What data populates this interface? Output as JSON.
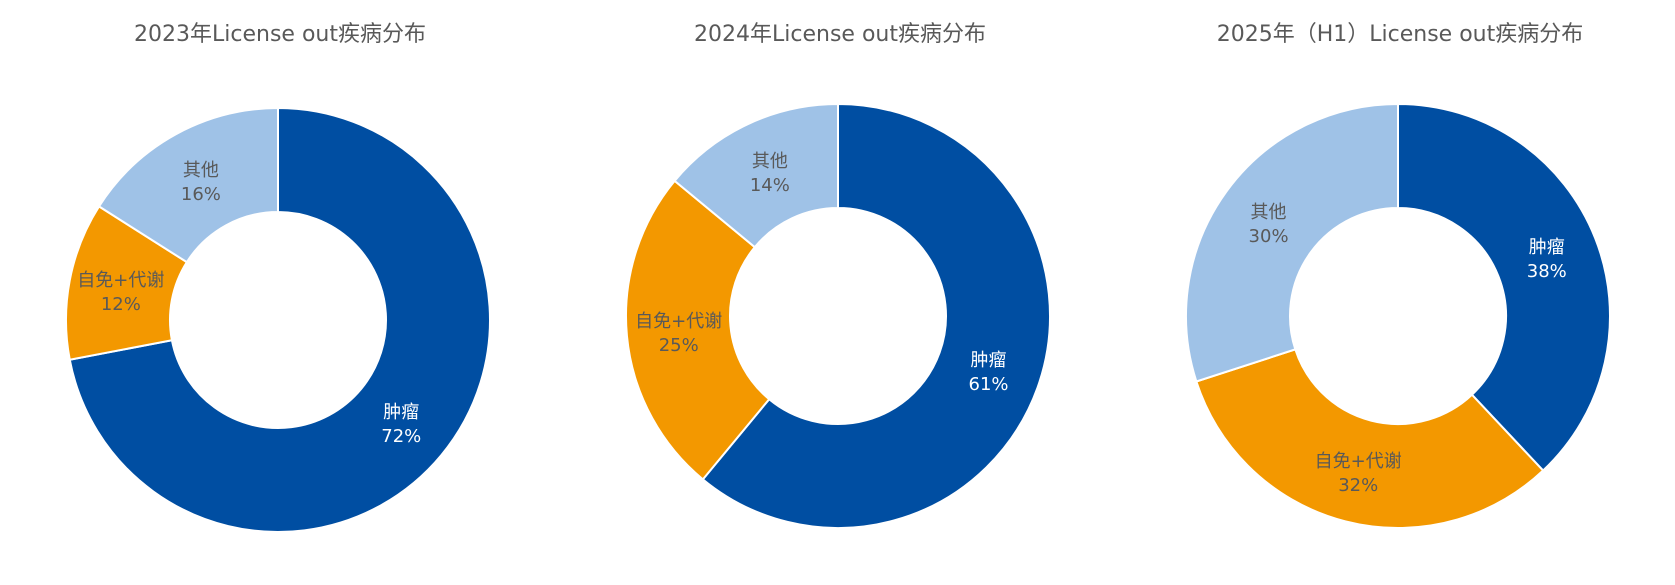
{
  "colors": {
    "tumor": "#004EA2",
    "immune": "#F39800",
    "other": "#9FC2E7",
    "title": "#595959"
  },
  "chart_data": [
    {
      "type": "pie",
      "title": "2023年License out疾病分布",
      "slices": [
        {
          "label": "肿瘤",
          "value": 72,
          "display": "72%",
          "color_key": "tumor",
          "text_color": "#ffffff"
        },
        {
          "label": "自免+代谢",
          "value": 12,
          "display": "12%",
          "color_key": "immune",
          "text_color": "#595959"
        },
        {
          "label": "其他",
          "value": 16,
          "display": "16%",
          "color_key": "other",
          "text_color": "#595959"
        }
      ]
    },
    {
      "type": "pie",
      "title": "2024年License out疾病分布",
      "slices": [
        {
          "label": "肿瘤",
          "value": 61,
          "display": "61%",
          "color_key": "tumor",
          "text_color": "#ffffff"
        },
        {
          "label": "自免+代谢",
          "value": 25,
          "display": "25%",
          "color_key": "immune",
          "text_color": "#595959"
        },
        {
          "label": "其他",
          "value": 14,
          "display": "14%",
          "color_key": "other",
          "text_color": "#595959"
        }
      ]
    },
    {
      "type": "pie",
      "title": "2025年（H1）License out疾病分布",
      "slices": [
        {
          "label": "肿瘤",
          "value": 38,
          "display": "38%",
          "color_key": "tumor",
          "text_color": "#ffffff"
        },
        {
          "label": "自免+代谢",
          "value": 32,
          "display": "32%",
          "color_key": "immune",
          "text_color": "#595959"
        },
        {
          "label": "其他",
          "value": 30,
          "display": "30%",
          "color_key": "other",
          "text_color": "#595959"
        }
      ]
    }
  ]
}
